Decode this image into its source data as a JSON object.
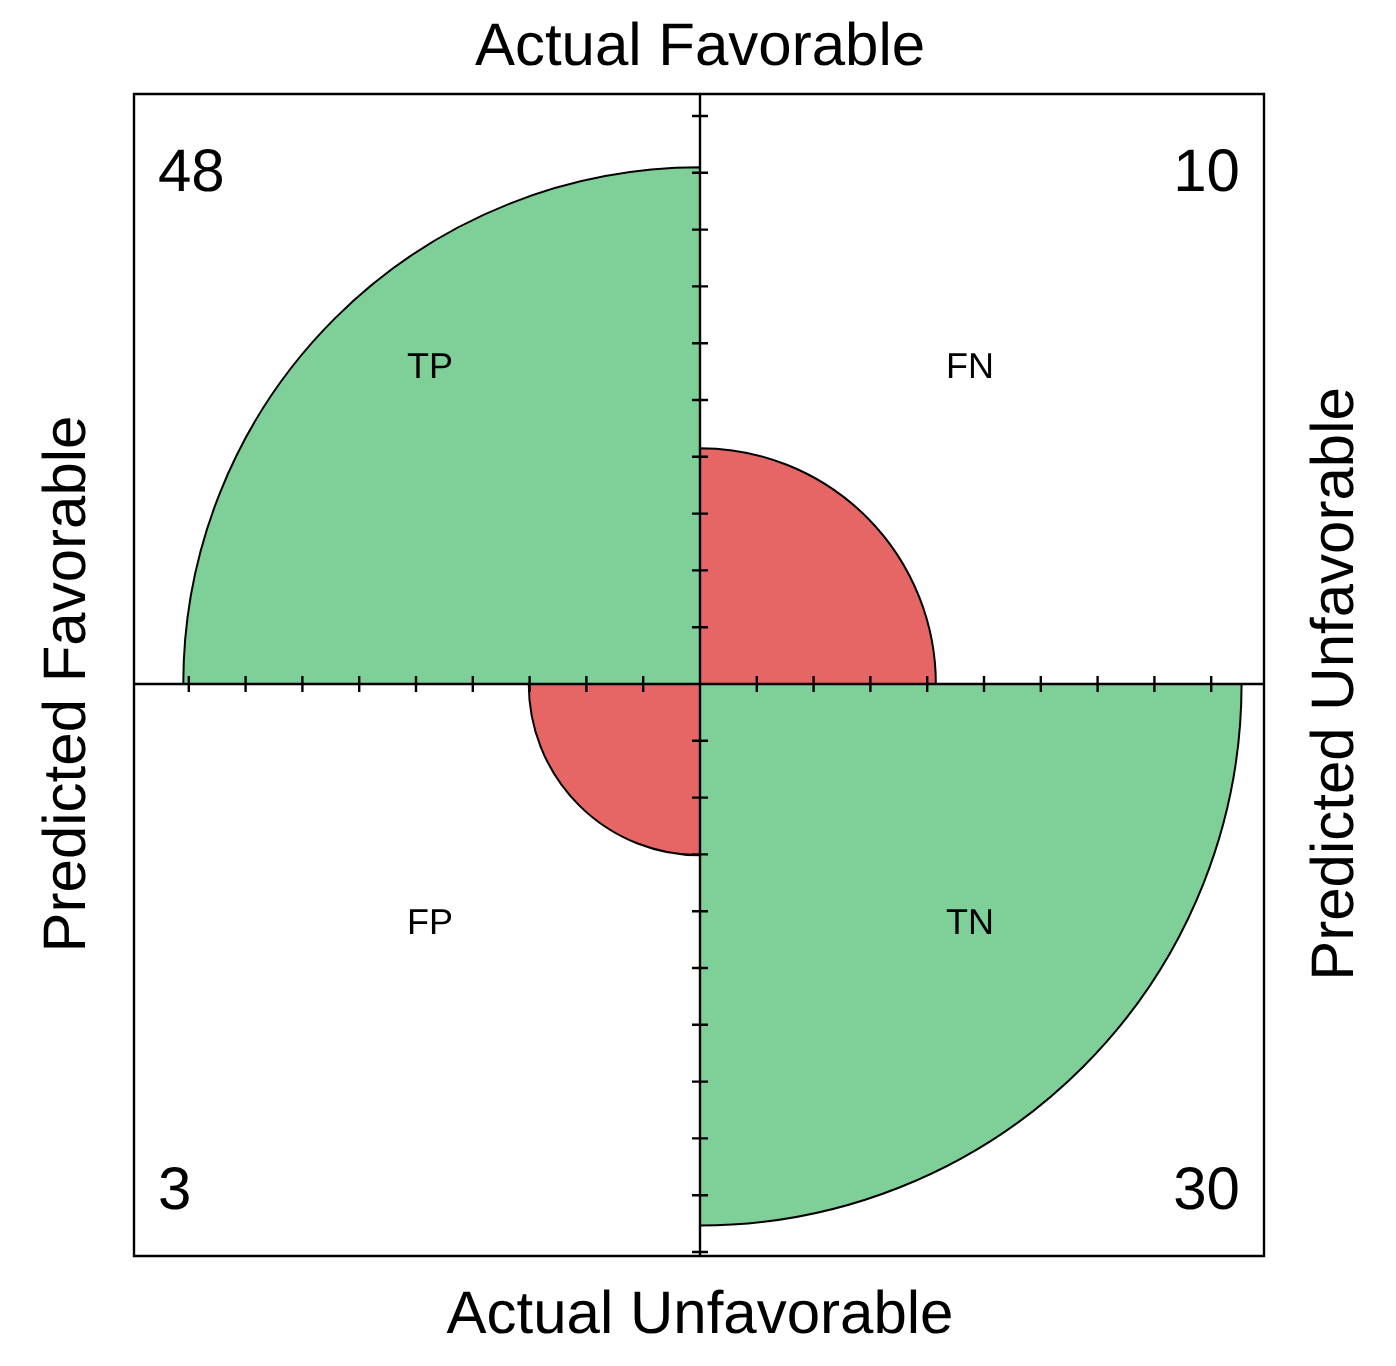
{
  "chart_data": {
    "type": "other",
    "x2label": "Actual Favorable",
    "xlabel": "Actual Unfavorable",
    "ylabel": "Predicted Favorable",
    "y2label": "Predicted Unfavorable",
    "categories": [
      "TP",
      "FN",
      "FP",
      "TN"
    ],
    "values": [
      48,
      10,
      3,
      30
    ],
    "data_labels": true,
    "colors": [
      "#7ecf98",
      "#e66565",
      "#e66565",
      "#7ecf98"
    ]
  }
}
